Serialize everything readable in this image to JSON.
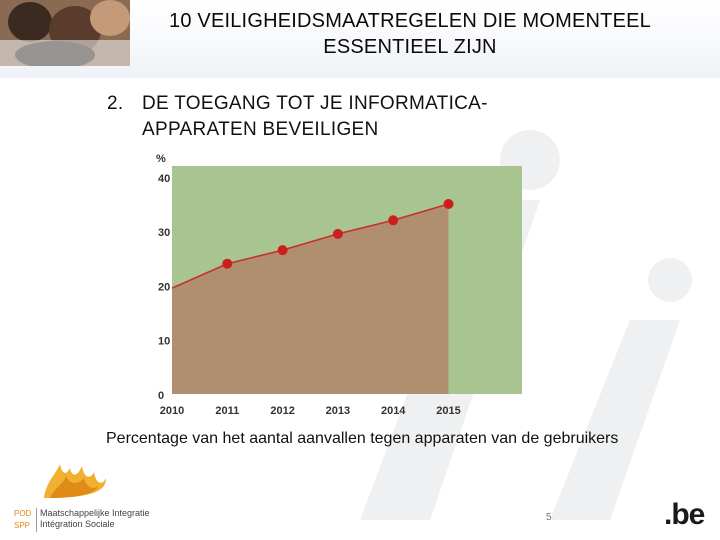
{
  "slide": {
    "title_line1": "10 VEILIGHEIDSMAATREGELEN DIE MOMENTEEL",
    "title_line2": "ESSENTIEEL ZIJN",
    "section_number": "2.",
    "section_line1": "DE TOEGANG TOT JE INFORMATICA-",
    "section_line2": "APPARATEN BEVEILIGEN",
    "caption": "Percentage van het aantal aanvallen tegen apparaten van de gebruikers",
    "page_number": "5",
    "logo_line1": "Maatschappelijke Integratie",
    "logo_line2": "Intégration Sociale",
    "logo_abbr1": "POD",
    "logo_abbr2": "SPP",
    "be_logo": ".be"
  },
  "colors": {
    "plot_bg": "#a8c490",
    "area_fill": "#b08a6e",
    "line": "#c8302a",
    "point": "#cc1e1e",
    "accent_logo": "#f0b030"
  },
  "chart_data": {
    "type": "area",
    "ylabel": "%",
    "x": [
      "2010",
      "2011",
      "2012",
      "2013",
      "2014",
      "2015"
    ],
    "x_tick_labels": [
      "2010",
      "2011",
      "2012",
      "2013",
      "2014",
      "2015"
    ],
    "y_tick_labels": [
      "0",
      "10",
      "20",
      "30",
      "40"
    ],
    "ylim": [
      0,
      42
    ],
    "series": [
      {
        "values": [
          19.5,
          24,
          26.5,
          29.5,
          32,
          35
        ]
      }
    ],
    "markers_on": [
      "2011",
      "2012",
      "2013",
      "2014",
      "2015"
    ],
    "grid": false
  }
}
